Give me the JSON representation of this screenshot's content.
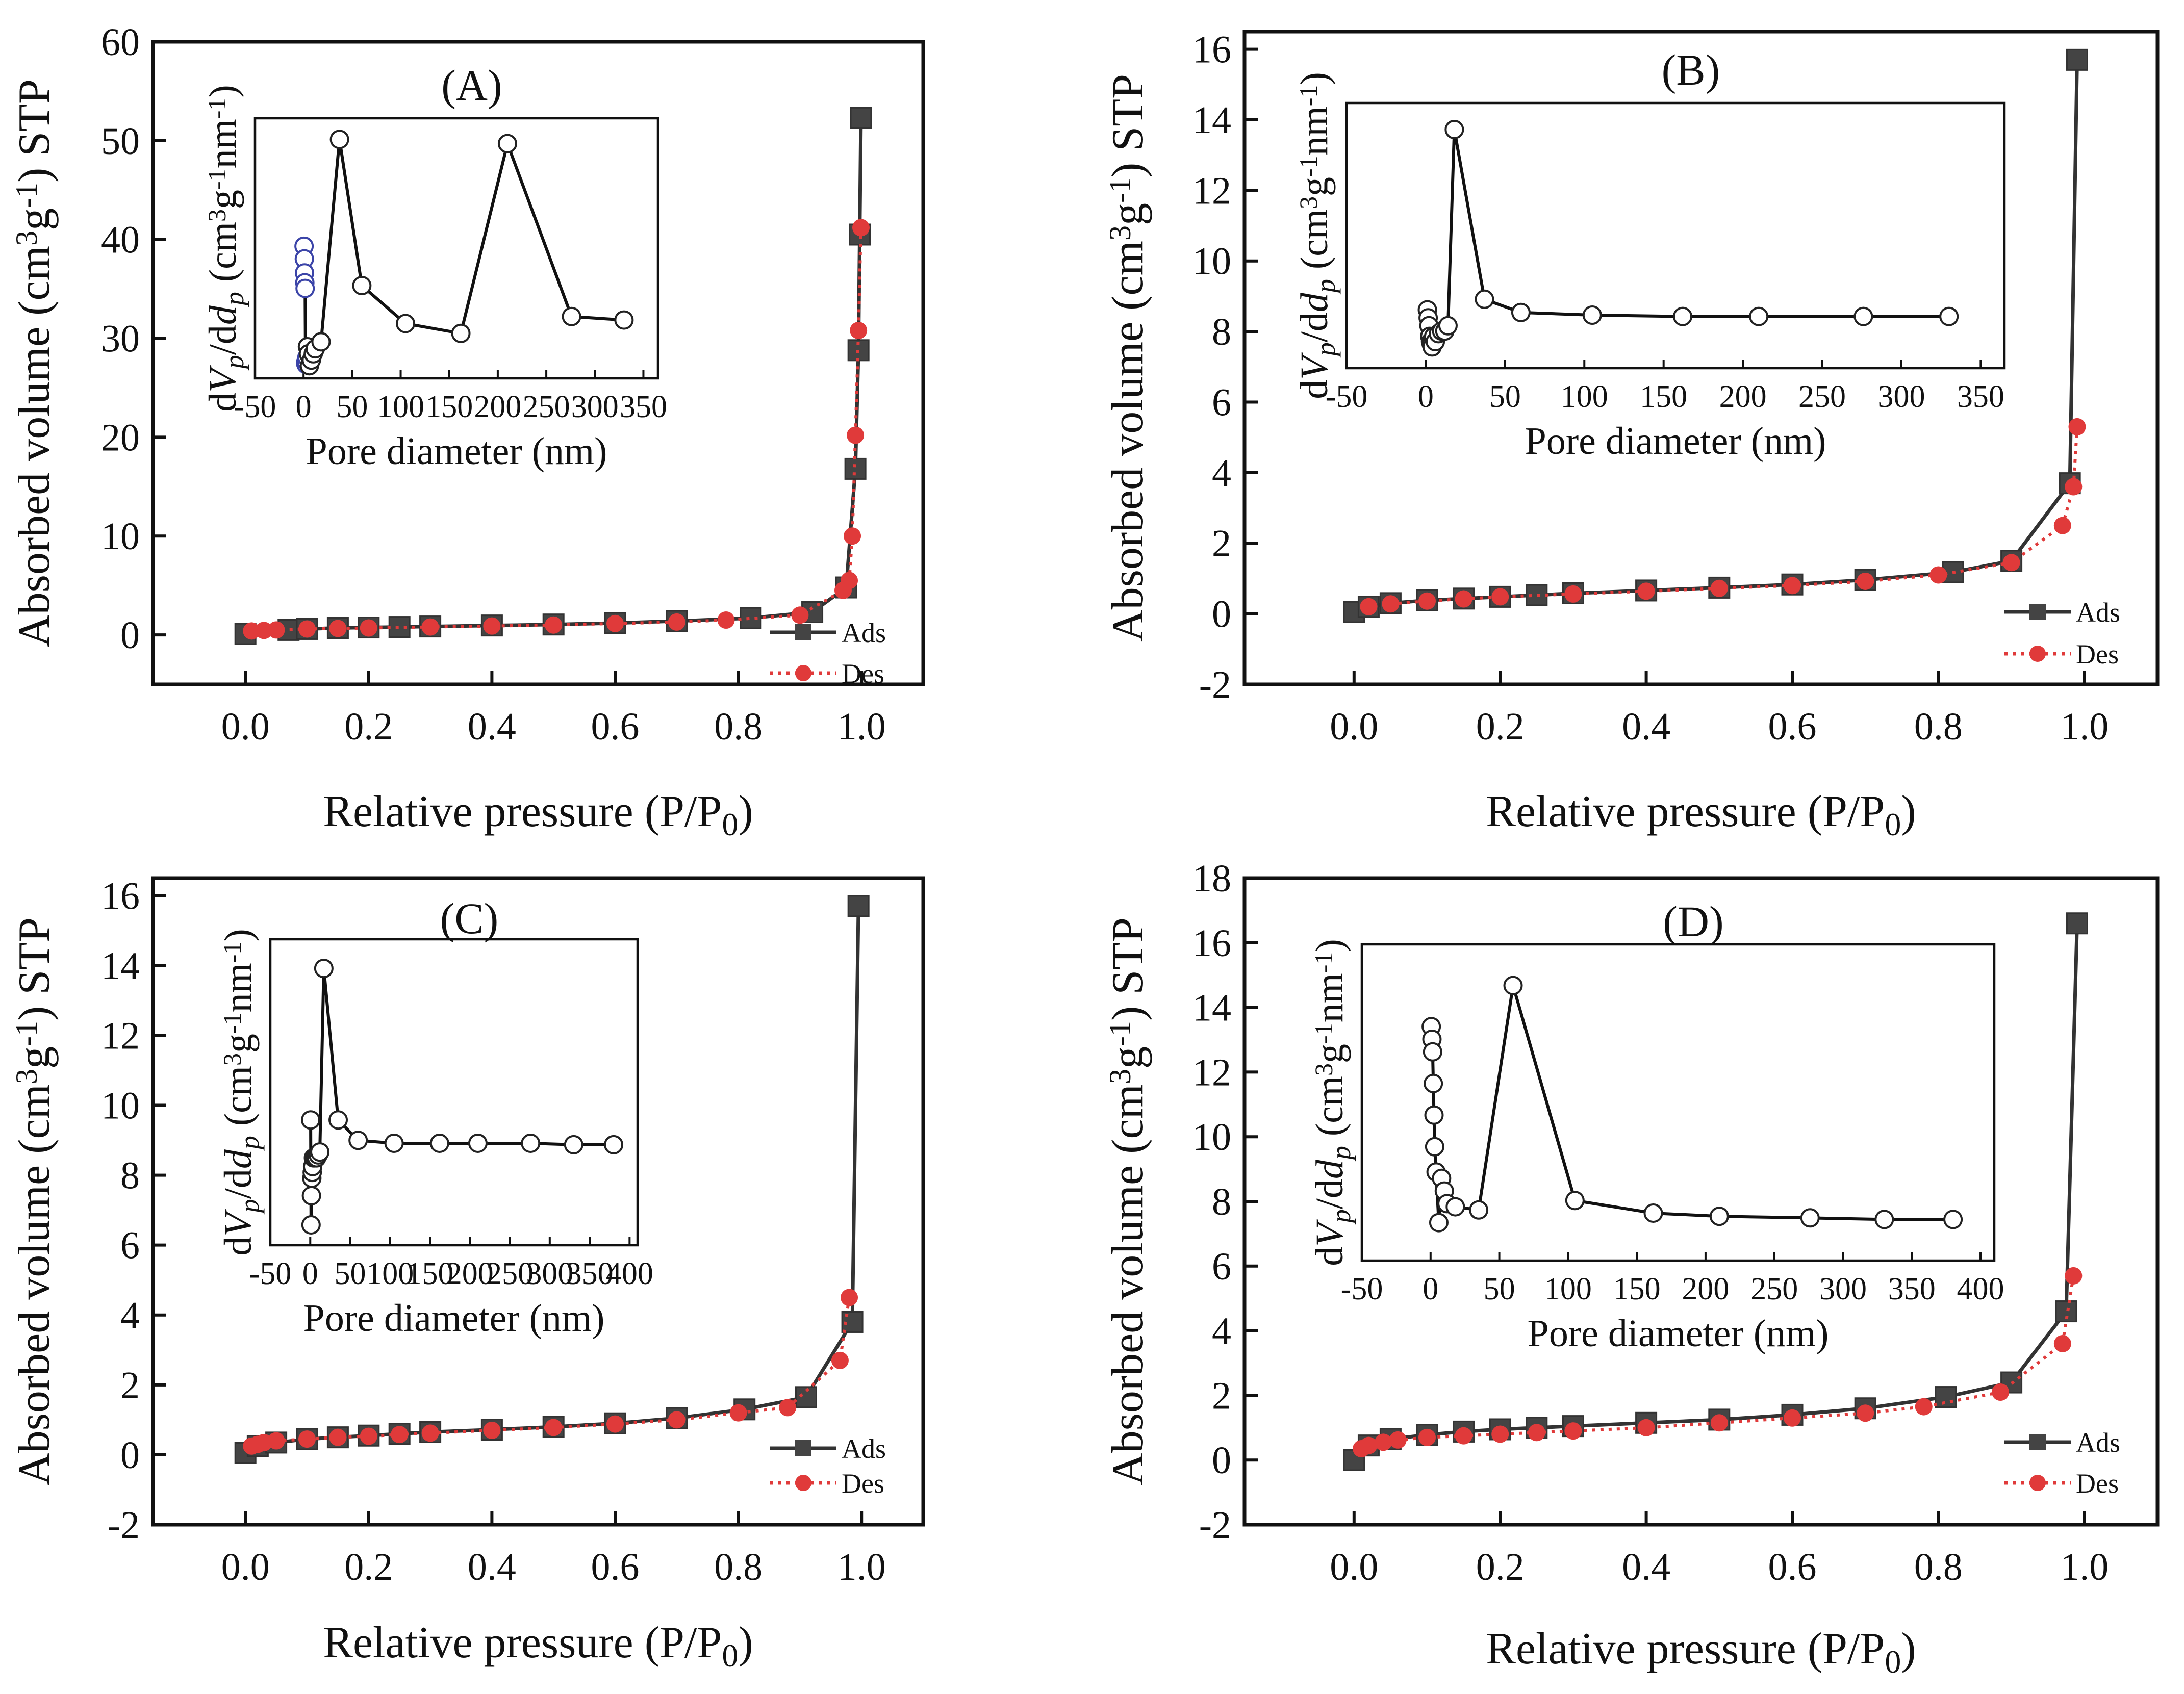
{
  "colors": {
    "ads": "#444444",
    "des": "#e03a3a",
    "inset_line": "#111111",
    "inset_marker_black": "#222222",
    "inset_marker_blue": "#3b44a8"
  },
  "chart_data": [
    {
      "panel": "A",
      "type": "line",
      "title": "(A)",
      "xlabel": "Relative pressure (P/P0)",
      "ylabel": "Absorbed volume (cm3g-1) STP",
      "xlim": [
        -0.15,
        1.1
      ],
      "ylim": [
        -5,
        60
      ],
      "xticks": [
        "0.0",
        "0.2",
        "0.4",
        "0.6",
        "0.8",
        "1.0"
      ],
      "yticks": [
        "0",
        "10",
        "20",
        "30",
        "40",
        "50",
        "60"
      ],
      "legend": [
        "Ads",
        "Des"
      ],
      "series": [
        {
          "name": "Ads",
          "marker": "square",
          "x": [
            0.0,
            0.07,
            0.1,
            0.15,
            0.2,
            0.25,
            0.3,
            0.4,
            0.5,
            0.6,
            0.7,
            0.82,
            0.92,
            0.975,
            0.99,
            0.995,
            0.997,
            0.999
          ],
          "y": [
            0.1,
            0.5,
            0.6,
            0.7,
            0.75,
            0.8,
            0.85,
            0.95,
            1.05,
            1.2,
            1.4,
            1.7,
            2.3,
            4.8,
            16.8,
            28.8,
            40.5,
            52.3
          ]
        },
        {
          "name": "Des",
          "marker": "circle",
          "x": [
            0.999,
            0.995,
            0.99,
            0.985,
            0.98,
            0.97,
            0.9,
            0.78,
            0.7,
            0.6,
            0.5,
            0.4,
            0.3,
            0.2,
            0.15,
            0.1,
            0.05,
            0.03,
            0.01
          ],
          "y": [
            41.2,
            30.8,
            20.2,
            10.0,
            5.5,
            4.5,
            2.0,
            1.5,
            1.3,
            1.15,
            1.0,
            0.9,
            0.8,
            0.7,
            0.65,
            0.6,
            0.5,
            0.45,
            0.4
          ]
        }
      ],
      "inset": {
        "xlabel": "Pore diameter (nm)",
        "ylabel": "dVp/ddp (cm3g-1nm-1)",
        "xlim": [
          -50,
          365
        ],
        "ylim": [
          15,
          52
        ],
        "xticks": [
          "-50",
          "0",
          "50",
          "100",
          "150",
          "200",
          "250",
          "300",
          "350"
        ],
        "x": [
          0.5,
          0.8,
          1.0,
          1.3,
          1.6,
          2.0,
          2.5,
          3.0,
          3.5,
          4.0,
          5.0,
          6.0,
          8.0,
          10.0,
          12.0,
          18.0,
          37.0,
          60.0,
          105.0,
          162.0,
          210.0,
          276.0,
          330.0
        ],
        "y": [
          33.8,
          32.0,
          30.0,
          28.6,
          27.8,
          17.2,
          17.0,
          17.4,
          18.0,
          19.5,
          18.5,
          16.8,
          17.6,
          18.5,
          19.2,
          20.2,
          49.0,
          28.2,
          22.8,
          21.4,
          48.4,
          23.8,
          23.3
        ],
        "blue_points": 9
      }
    },
    {
      "panel": "B",
      "type": "line",
      "title": "(B)",
      "xlabel": "Relative pressure (P/P0)",
      "ylabel": "Absorbed volume (cm3g-1) STP",
      "xlim": [
        -0.15,
        1.1
      ],
      "ylim": [
        -2,
        16.5
      ],
      "xticks": [
        "0.0",
        "0.2",
        "0.4",
        "0.6",
        "0.8",
        "1.0"
      ],
      "yticks": [
        "-2",
        "0",
        "2",
        "4",
        "6",
        "8",
        "10",
        "12",
        "14",
        "16"
      ],
      "legend": [
        "Ads",
        "Des"
      ],
      "series": [
        {
          "name": "Ads",
          "marker": "square",
          "x": [
            0.0,
            0.02,
            0.05,
            0.1,
            0.15,
            0.2,
            0.25,
            0.3,
            0.4,
            0.5,
            0.6,
            0.7,
            0.82,
            0.9,
            0.98,
            0.99
          ],
          "y": [
            0.05,
            0.2,
            0.3,
            0.38,
            0.43,
            0.48,
            0.53,
            0.58,
            0.66,
            0.74,
            0.83,
            0.96,
            1.18,
            1.5,
            3.7,
            15.7
          ]
        },
        {
          "name": "Des",
          "marker": "circle",
          "x": [
            0.99,
            0.985,
            0.97,
            0.9,
            0.8,
            0.7,
            0.6,
            0.5,
            0.4,
            0.3,
            0.2,
            0.15,
            0.1,
            0.05,
            0.02
          ],
          "y": [
            5.3,
            3.6,
            2.5,
            1.45,
            1.1,
            0.92,
            0.8,
            0.72,
            0.64,
            0.56,
            0.48,
            0.42,
            0.36,
            0.28,
            0.2
          ]
        }
      ],
      "inset": {
        "xlabel": "Pore diameter (nm)",
        "ylabel": "dVp/ddp (cm3g-1nm-1)",
        "xlim": [
          -50,
          365
        ],
        "ylim": [
          5,
          15
        ],
        "xticks": [
          "-50",
          "0",
          "50",
          "100",
          "150",
          "200",
          "250",
          "300",
          "350"
        ],
        "x": [
          1,
          1.5,
          2,
          2.5,
          3,
          3.5,
          4,
          5,
          6,
          8,
          10,
          12,
          14,
          18,
          37,
          60,
          105,
          162,
          210,
          276,
          330
        ],
        "y": [
          7.2,
          6.9,
          6.6,
          6.2,
          6.0,
          5.9,
          5.8,
          6.2,
          6.0,
          6.3,
          6.4,
          6.4,
          6.6,
          14.0,
          7.6,
          7.1,
          7.0,
          6.95,
          6.95,
          6.95,
          6.95
        ],
        "blue_points": 0
      }
    },
    {
      "panel": "C",
      "type": "line",
      "title": "(C)",
      "xlabel": "Relative pressure (P/P0)",
      "ylabel": "Absorbed volume (cm3g-1) STP",
      "xlim": [
        -0.15,
        1.1
      ],
      "ylim": [
        -2,
        16.5
      ],
      "xticks": [
        "0.0",
        "0.2",
        "0.4",
        "0.6",
        "0.8",
        "1.0"
      ],
      "yticks": [
        "-2",
        "0",
        "2",
        "4",
        "6",
        "8",
        "10",
        "12",
        "14",
        "16"
      ],
      "legend": [
        "Ads",
        "Des"
      ],
      "series": [
        {
          "name": "Ads",
          "marker": "square",
          "x": [
            0.0,
            0.02,
            0.05,
            0.1,
            0.15,
            0.2,
            0.25,
            0.3,
            0.4,
            0.5,
            0.6,
            0.7,
            0.81,
            0.91,
            0.985,
            0.995
          ],
          "y": [
            0.05,
            0.25,
            0.35,
            0.45,
            0.5,
            0.55,
            0.6,
            0.65,
            0.72,
            0.8,
            0.9,
            1.05,
            1.3,
            1.65,
            3.8,
            15.7
          ]
        },
        {
          "name": "Des",
          "marker": "circle",
          "x": [
            0.98,
            0.965,
            0.88,
            0.8,
            0.7,
            0.6,
            0.5,
            0.4,
            0.3,
            0.25,
            0.2,
            0.15,
            0.1,
            0.05,
            0.03,
            0.02,
            0.01
          ],
          "y": [
            4.5,
            2.7,
            1.35,
            1.2,
            1.0,
            0.88,
            0.78,
            0.7,
            0.62,
            0.58,
            0.53,
            0.5,
            0.45,
            0.4,
            0.35,
            0.3,
            0.25
          ]
        }
      ],
      "inset": {
        "xlabel": "Pore diameter (nm)",
        "ylabel": "dVp/ddp (cm3g-1nm-1)",
        "xlim": [
          -50,
          410
        ],
        "ylim": [
          4.5,
          15
        ],
        "xticks": [
          "-50",
          "0",
          "50",
          "100",
          "150",
          "200",
          "250",
          "300",
          "350",
          "400"
        ],
        "x": [
          0.5,
          1.0,
          1.5,
          2.0,
          2.5,
          3.0,
          4.0,
          5.0,
          6.0,
          8.0,
          10.0,
          12.0,
          17.0,
          35.0,
          60.0,
          105.0,
          162.0,
          210.0,
          276.0,
          330.0,
          380.0
        ],
        "y": [
          8.8,
          5.2,
          6.2,
          6.8,
          7.0,
          7.2,
          7.5,
          7.5,
          7.5,
          7.5,
          7.6,
          7.7,
          14.0,
          8.8,
          8.1,
          8.0,
          8.0,
          8.0,
          8.0,
          7.95,
          7.95
        ],
        "blue_points": 0
      }
    },
    {
      "panel": "D",
      "type": "line",
      "title": "(D)",
      "xlabel": "Relative pressure (P/P0)",
      "ylabel": "Absorbed volume (cm3g-1) STP",
      "xlim": [
        -0.15,
        1.1
      ],
      "ylim": [
        -2,
        18
      ],
      "xticks": [
        "0.0",
        "0.2",
        "0.4",
        "0.6",
        "0.8",
        "1.0"
      ],
      "yticks": [
        "-2",
        "0",
        "2",
        "4",
        "6",
        "8",
        "10",
        "12",
        "14",
        "16",
        "18"
      ],
      "legend": [
        "Ads",
        "Des"
      ],
      "series": [
        {
          "name": "Ads",
          "marker": "square",
          "x": [
            0.0,
            0.02,
            0.05,
            0.1,
            0.15,
            0.2,
            0.25,
            0.3,
            0.4,
            0.5,
            0.6,
            0.7,
            0.81,
            0.9,
            0.975,
            0.99
          ],
          "y": [
            0.0,
            0.45,
            0.65,
            0.78,
            0.88,
            0.95,
            1.0,
            1.05,
            1.15,
            1.25,
            1.4,
            1.6,
            1.95,
            2.4,
            4.6,
            16.6
          ]
        },
        {
          "name": "Des",
          "marker": "circle",
          "x": [
            0.985,
            0.97,
            0.885,
            0.78,
            0.7,
            0.6,
            0.5,
            0.4,
            0.3,
            0.25,
            0.2,
            0.15,
            0.1,
            0.06,
            0.04,
            0.02,
            0.01
          ],
          "y": [
            5.7,
            3.6,
            2.1,
            1.65,
            1.45,
            1.3,
            1.15,
            1.0,
            0.9,
            0.85,
            0.8,
            0.75,
            0.7,
            0.62,
            0.55,
            0.45,
            0.35
          ]
        }
      ],
      "inset": {
        "xlabel": "Pore diameter (nm)",
        "ylabel": "dVp/ddp (cm3g-1nm-1)",
        "xlim": [
          -50,
          410
        ],
        "ylim": [
          6,
          16
        ],
        "xticks": [
          "-50",
          "0",
          "50",
          "100",
          "150",
          "200",
          "250",
          "300",
          "350",
          "400"
        ],
        "x": [
          0.5,
          1.0,
          1.5,
          2.0,
          2.5,
          3.0,
          4.0,
          6.0,
          8.0,
          10.0,
          12.0,
          18.0,
          35.0,
          60.0,
          105.0,
          162.0,
          210.0,
          276.0,
          330.0,
          380.0
        ],
        "y": [
          13.4,
          13.0,
          12.6,
          11.6,
          10.6,
          9.6,
          8.8,
          7.2,
          8.6,
          8.2,
          7.8,
          7.7,
          7.6,
          14.7,
          7.9,
          7.5,
          7.4,
          7.35,
          7.3,
          7.3
        ],
        "blue_points": 0
      }
    }
  ]
}
